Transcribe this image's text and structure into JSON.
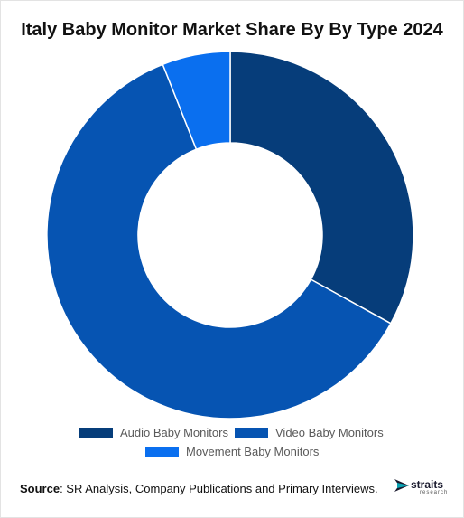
{
  "title": "Italy Baby Monitor Market Share By By Type 2024",
  "chart_data": {
    "type": "pie",
    "variant": "donut",
    "title": "Italy Baby Monitor Market Share By By Type 2024",
    "series": [
      {
        "name": "Audio Baby Monitors",
        "value": 33,
        "color": "#063d7a"
      },
      {
        "name": "Video Baby Monitors",
        "value": 61,
        "color": "#0654b2"
      },
      {
        "name": "Movement Baby Monitors",
        "value": 6,
        "color": "#0a6fef"
      }
    ],
    "legend_position": "bottom"
  },
  "source": {
    "label": "Source",
    "text": ": SR Analysis, Company Publications and Primary Interviews."
  },
  "logo": {
    "word": "straits",
    "sub": "research"
  }
}
